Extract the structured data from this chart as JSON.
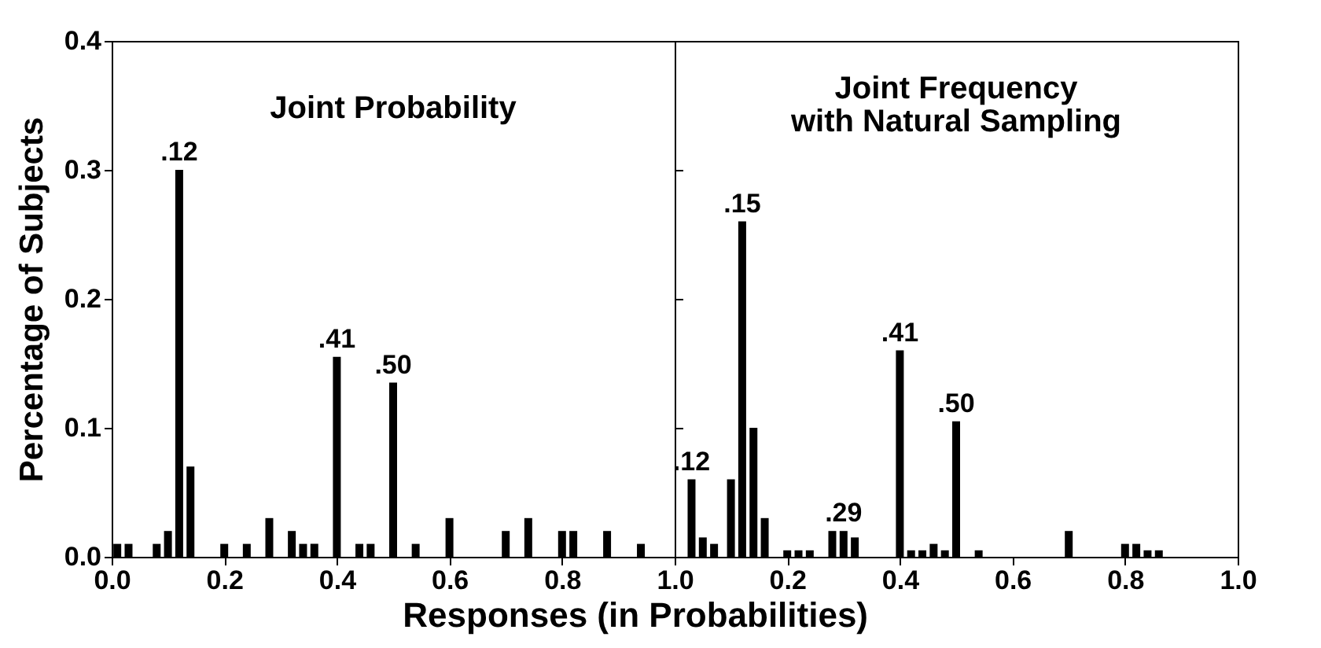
{
  "chart_data": [
    {
      "type": "bar",
      "title": "Joint Probability",
      "xlabel": "Responses (in Probabilities)",
      "ylabel": "Percentage of Subjects",
      "x": [
        0.01,
        0.03,
        0.08,
        0.1,
        0.12,
        0.14,
        0.2,
        0.24,
        0.28,
        0.32,
        0.34,
        0.36,
        0.4,
        0.44,
        0.46,
        0.5,
        0.54,
        0.6,
        0.7,
        0.74,
        0.8,
        0.82,
        0.88,
        0.94
      ],
      "series": [
        {
          "color": "#000000",
          "values": [
            0.01,
            0.01,
            0.01,
            0.02,
            0.3,
            0.07,
            0.01,
            0.01,
            0.03,
            0.02,
            0.01,
            0.01,
            0.155,
            0.01,
            0.01,
            0.135,
            0.01,
            0.03,
            0.02,
            0.03,
            0.02,
            0.02,
            0.02,
            0.01
          ]
        }
      ],
      "xlim": [
        0,
        1
      ],
      "ylim": [
        0,
        0.4
      ],
      "xticks": [
        {
          "value": 0,
          "label": "0.0"
        },
        {
          "value": 0.2,
          "label": "0.2"
        },
        {
          "value": 0.4,
          "label": "0.4"
        },
        {
          "value": 0.6,
          "label": "0.6"
        },
        {
          "value": 0.8,
          "label": "0.8"
        },
        {
          "value": 1,
          "label": "1.0"
        }
      ],
      "yticks": [
        {
          "value": 0,
          "label": "0.0"
        },
        {
          "value": 0.1,
          "label": "0.1"
        },
        {
          "value": 0.2,
          "label": "0.2"
        },
        {
          "value": 0.3,
          "label": "0.3"
        },
        {
          "value": 0.4,
          "label": "0.4"
        }
      ],
      "annotations": [
        {
          "text": ".12",
          "x": 0.12,
          "y": 0.3
        },
        {
          "text": ".41",
          "x": 0.4,
          "y": 0.155
        },
        {
          "text": ".50",
          "x": 0.5,
          "y": 0.135
        }
      ]
    },
    {
      "type": "bar",
      "title": "Joint Frequency\nwith Natural Sampling",
      "x": [
        0.03,
        0.05,
        0.07,
        0.1,
        0.12,
        0.14,
        0.16,
        0.2,
        0.22,
        0.24,
        0.28,
        0.3,
        0.32,
        0.4,
        0.42,
        0.44,
        0.46,
        0.48,
        0.5,
        0.54,
        0.7,
        0.8,
        0.82,
        0.84,
        0.86
      ],
      "series": [
        {
          "color": "#000000",
          "values": [
            0.06,
            0.015,
            0.01,
            0.06,
            0.26,
            0.1,
            0.03,
            0.005,
            0.005,
            0.005,
            0.02,
            0.02,
            0.015,
            0.16,
            0.005,
            0.005,
            0.01,
            0.005,
            0.105,
            0.005,
            0.02,
            0.01,
            0.01,
            0.005,
            0.005
          ]
        }
      ],
      "xlim": [
        0,
        1
      ],
      "ylim": [
        0,
        0.4
      ],
      "xticks": [
        {
          "value": 0,
          "label": null
        },
        {
          "value": 0.2,
          "label": "0.2"
        },
        {
          "value": 0.4,
          "label": "0.4"
        },
        {
          "value": 0.6,
          "label": "0.6"
        },
        {
          "value": 0.8,
          "label": "0.8"
        },
        {
          "value": 1,
          "label": "1.0"
        }
      ],
      "yticks": [
        {
          "value": 0,
          "label": null
        },
        {
          "value": 0.1,
          "label": null
        },
        {
          "value": 0.2,
          "label": null
        },
        {
          "value": 0.3,
          "label": null
        },
        {
          "value": 0.4,
          "label": null
        }
      ],
      "tick_labels": "x",
      "annotations": [
        {
          "text": ".12",
          "x": 0.03,
          "y": 0.06
        },
        {
          "text": ".15",
          "x": 0.12,
          "y": 0.26
        },
        {
          "text": ".29",
          "x": 0.3,
          "y": 0.02
        },
        {
          "text": ".41",
          "x": 0.4,
          "y": 0.16
        },
        {
          "text": ".50",
          "x": 0.5,
          "y": 0.105
        }
      ]
    }
  ]
}
